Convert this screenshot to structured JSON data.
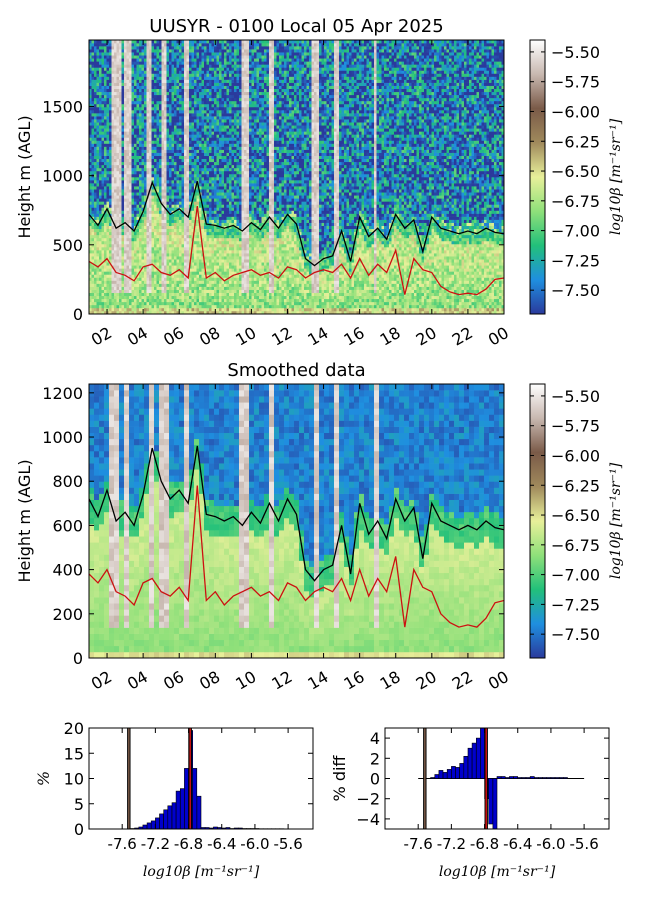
{
  "chart_data": [
    {
      "type": "heatmap",
      "title": "UUSYR - 0100 Local 05 Apr 2025",
      "ylabel": "Height m (AGL)",
      "xlabel": "",
      "x_ticks": [
        "02",
        "04",
        "06",
        "08",
        "10",
        "12",
        "14",
        "16",
        "18",
        "20",
        "22",
        "00"
      ],
      "y_ticks": [
        0,
        500,
        1000,
        1500
      ],
      "ylim": [
        0,
        1980
      ],
      "colorbar": {
        "label": "log10β [m⁻¹sr⁻¹]",
        "ticks": [
          "-5.50",
          "-5.75",
          "-6.00",
          "-6.25",
          "-6.50",
          "-6.75",
          "-7.00",
          "-7.25",
          "-7.50"
        ],
        "range": [
          -7.7,
          -5.4
        ],
        "colormap": [
          "#2a3a9c",
          "#1f8fe0",
          "#22c07a",
          "#8fe07a",
          "#e8f09a",
          "#a08a5c",
          "#7a5a48",
          "#c8b8b0",
          "#ffffff"
        ]
      },
      "series": [
        {
          "color": "#000000",
          "x": [
            1.0,
            1.5,
            2.0,
            2.5,
            3.0,
            3.5,
            4.0,
            4.5,
            5.0,
            5.5,
            6.0,
            6.5,
            7.0,
            7.5,
            8.0,
            8.5,
            9.0,
            9.5,
            10.0,
            10.5,
            11.0,
            11.5,
            12.0,
            12.5,
            13.0,
            13.5,
            14.0,
            14.5,
            15.0,
            15.5,
            16.0,
            16.5,
            17.0,
            17.5,
            18.0,
            18.5,
            19.0,
            19.5,
            20.0,
            20.5,
            21.0,
            21.5,
            22.0,
            22.5,
            23.0,
            23.5,
            24.0
          ],
          "y": [
            720,
            640,
            760,
            620,
            660,
            600,
            740,
            950,
            800,
            720,
            760,
            700,
            960,
            650,
            640,
            620,
            640,
            600,
            660,
            610,
            700,
            620,
            720,
            650,
            400,
            350,
            400,
            420,
            600,
            380,
            700,
            560,
            620,
            540,
            720,
            620,
            680,
            450,
            700,
            620,
            600,
            580,
            600,
            580,
            620,
            590,
            580
          ]
        },
        {
          "color": "#cc1111",
          "x": [
            1.0,
            1.5,
            2.0,
            2.5,
            3.0,
            3.5,
            4.0,
            4.5,
            5.0,
            5.5,
            6.0,
            6.5,
            7.0,
            7.5,
            8.0,
            8.5,
            9.0,
            9.5,
            10.0,
            10.5,
            11.0,
            11.5,
            12.0,
            12.5,
            13.0,
            13.5,
            14.0,
            14.5,
            15.0,
            15.5,
            16.0,
            16.5,
            17.0,
            17.5,
            18.0,
            18.5,
            19.0,
            19.5,
            20.0,
            20.5,
            21.0,
            21.5,
            22.0,
            22.5,
            23.0,
            23.5,
            24.0
          ],
          "y": [
            380,
            340,
            400,
            300,
            280,
            240,
            340,
            360,
            300,
            280,
            320,
            260,
            780,
            260,
            300,
            240,
            280,
            300,
            320,
            280,
            300,
            260,
            340,
            320,
            260,
            300,
            320,
            300,
            360,
            260,
            400,
            280,
            360,
            300,
            460,
            140,
            400,
            320,
            300,
            200,
            160,
            140,
            150,
            140,
            180,
            250,
            260
          ]
        }
      ]
    },
    {
      "type": "heatmap",
      "title": "Smoothed data",
      "ylabel": "Height m (AGL)",
      "xlabel": "",
      "x_ticks": [
        "02",
        "04",
        "06",
        "08",
        "10",
        "12",
        "14",
        "16",
        "18",
        "20",
        "22",
        "00"
      ],
      "y_ticks": [
        0,
        200,
        400,
        600,
        800,
        1000,
        1200
      ],
      "ylim": [
        0,
        1240
      ],
      "colorbar": {
        "label": "log10β [m⁻¹sr⁻¹]",
        "ticks": [
          "-5.50",
          "-5.75",
          "-6.00",
          "-6.25",
          "-6.50",
          "-6.75",
          "-7.00",
          "-7.25",
          "-7.50"
        ],
        "range": [
          -7.7,
          -5.4
        ]
      }
    },
    {
      "type": "bar",
      "ylabel": "%",
      "xlabel": "log10β [m⁻¹sr⁻¹]",
      "x_ticks": [
        "-7.6",
        "-7.2",
        "-6.8",
        "-6.4",
        "-6.0",
        "-5.6"
      ],
      "xlim": [
        -8.0,
        -5.3
      ],
      "y_ticks": [
        0,
        5,
        10,
        15,
        20
      ],
      "ylim": [
        0,
        20
      ],
      "bin_width": 0.05,
      "x": [
        -7.5,
        -7.45,
        -7.4,
        -7.35,
        -7.3,
        -7.25,
        -7.2,
        -7.15,
        -7.1,
        -7.05,
        -7.0,
        -6.95,
        -6.9,
        -6.85,
        -6.8,
        -6.75,
        -6.7,
        -6.65,
        -6.6,
        -6.55,
        -6.5,
        -6.45,
        -6.4,
        -6.35,
        -6.3,
        -6.25,
        -6.2,
        -6.15,
        -6.1,
        -6.05,
        -6.0,
        -5.95,
        -5.9,
        -5.85,
        -5.8,
        -5.75,
        -5.7
      ],
      "values": [
        0.1,
        0.2,
        0.4,
        0.8,
        1.2,
        1.6,
        2.2,
        3.0,
        3.8,
        4.6,
        5.2,
        7.5,
        8.0,
        12.0,
        19.5,
        12.0,
        6.5,
        0.3,
        0.3,
        0.2,
        0.4,
        0.3,
        0.2,
        0.3,
        0.1,
        0.2,
        0.2,
        0.1,
        0.1,
        0.1,
        0.1,
        0.05,
        0.05,
        0.05,
        0.05,
        0.05,
        0.05
      ],
      "bar_color": "#0000cc",
      "vlines": [
        {
          "x": -7.52,
          "color": "#7a5a48"
        },
        {
          "x": -6.78,
          "color": "#cc1111"
        }
      ]
    },
    {
      "type": "bar",
      "ylabel": "% diff",
      "xlabel": "log10β [m⁻¹sr⁻¹]",
      "x_ticks": [
        "-7.6",
        "-7.2",
        "-6.8",
        "-6.4",
        "-6.0",
        "-5.6"
      ],
      "xlim": [
        -8.0,
        -5.3
      ],
      "y_ticks": [
        -4,
        -2,
        0,
        2,
        4
      ],
      "ylim": [
        -5,
        5
      ],
      "bin_width": 0.05,
      "x": [
        -7.45,
        -7.4,
        -7.35,
        -7.3,
        -7.25,
        -7.2,
        -7.15,
        -7.1,
        -7.05,
        -7.0,
        -6.95,
        -6.9,
        -6.85,
        -6.8,
        -6.75,
        -6.7,
        -6.65,
        -6.6,
        -6.55,
        -6.5,
        -6.45,
        -6.4,
        -6.35,
        -6.3,
        -6.25,
        -6.2,
        -6.15,
        -6.1,
        -6.05,
        -6.0,
        -5.95,
        -5.9,
        -5.85
      ],
      "values": [
        0.1,
        0.4,
        0.8,
        0.6,
        0.9,
        1.2,
        1.1,
        1.5,
        2.2,
        3.0,
        3.5,
        4.0,
        5.0,
        -2.0,
        -4.5,
        -5.0,
        0.2,
        0.2,
        0.1,
        0.2,
        0.2,
        0.1,
        0.1,
        0.1,
        0.2,
        0.1,
        0.1,
        0.1,
        0.1,
        0.1,
        0.1,
        0.1,
        0.1
      ],
      "bar_color": "#0000cc",
      "zero_line": [
        -7.6,
        -5.6
      ],
      "vlines": [
        {
          "x": -7.52,
          "color": "#7a5a48"
        },
        {
          "x": -6.78,
          "color": "#cc1111"
        }
      ]
    }
  ]
}
